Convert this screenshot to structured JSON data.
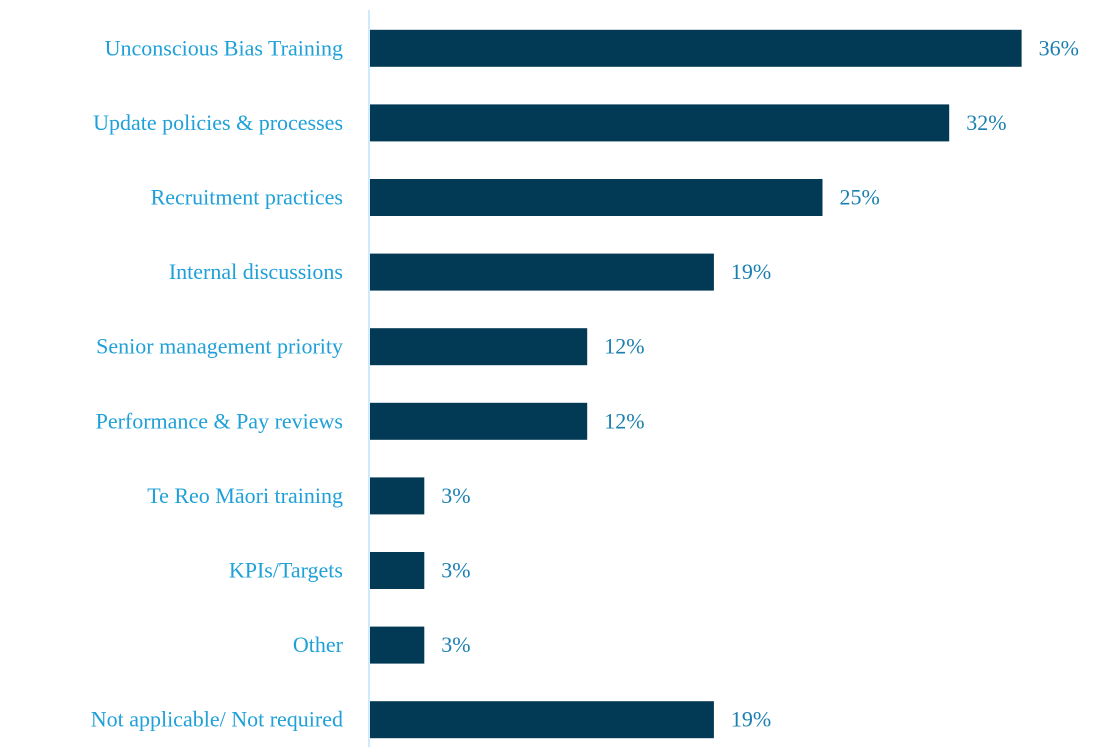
{
  "chart_data": {
    "type": "bar",
    "orientation": "horizontal",
    "categories": [
      "Unconscious Bias Training",
      "Update policies & processes",
      "Recruitment practices",
      "Internal discussions",
      "Senior management priority",
      "Performance & Pay reviews",
      "Te Reo Māori training",
      "KPIs/Targets",
      "Other",
      "Not applicable/ Not required"
    ],
    "values": [
      36,
      32,
      25,
      19,
      12,
      12,
      3,
      3,
      3,
      19
    ],
    "value_labels": [
      "36%",
      "32%",
      "25%",
      "19%",
      "12%",
      "12%",
      "3%",
      "3%",
      "3%",
      "19%"
    ],
    "color": "#023a55"
  }
}
